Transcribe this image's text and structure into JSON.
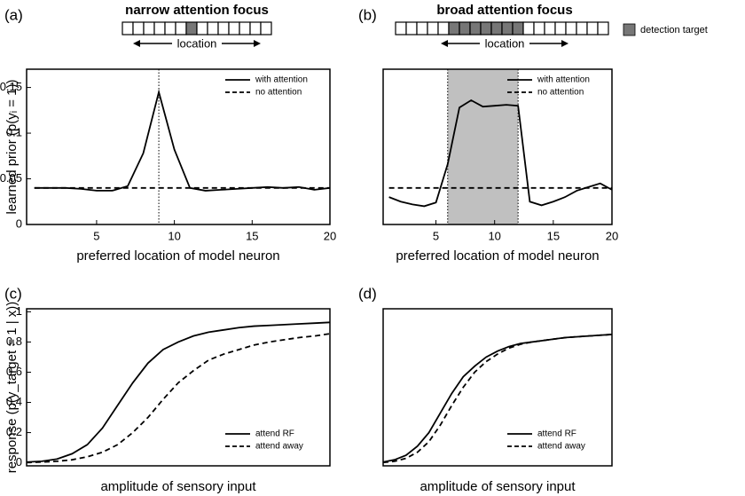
{
  "legend_key": {
    "label": "detection target",
    "color": "#777777"
  },
  "chart_data": [
    {
      "type": "line",
      "panel": "(a)",
      "title": "narrow attention focus",
      "schematic_label": "location",
      "xlabel": "preferred location of model neuron",
      "ylabel": "learned prior (p(yᵢ = 1))",
      "x": [
        1,
        2,
        3,
        4,
        5,
        6,
        7,
        8,
        9,
        10,
        11,
        12,
        13,
        14,
        15,
        16,
        17,
        18,
        19,
        20
      ],
      "series": [
        {
          "name": "with attention",
          "color": "#000000",
          "style": "solid",
          "values": [
            0.04,
            0.04,
            0.04,
            0.039,
            0.037,
            0.037,
            0.042,
            0.078,
            0.145,
            0.082,
            0.04,
            0.037,
            0.038,
            0.039,
            0.04,
            0.041,
            0.04,
            0.041,
            0.038,
            0.04
          ]
        },
        {
          "name": "no attention",
          "color": "#000000",
          "style": "dashed",
          "values": [
            0.04,
            0.04,
            0.04,
            0.04,
            0.04,
            0.04,
            0.04,
            0.04,
            0.04,
            0.04,
            0.04,
            0.04,
            0.04,
            0.04,
            0.04,
            0.04,
            0.04,
            0.04,
            0.04,
            0.04
          ]
        }
      ],
      "vline": 9,
      "xlim": [
        0.5,
        20
      ],
      "xticks": [
        5,
        10,
        15,
        20
      ],
      "ylim": [
        0,
        0.17
      ],
      "yticks": [
        0,
        0.05,
        0.1,
        0.15
      ],
      "legend": "upper right"
    },
    {
      "type": "line",
      "panel": "(b)",
      "title": "broad attention focus",
      "schematic_label": "location",
      "xlabel": "preferred location of model neuron",
      "x": [
        1,
        2,
        3,
        4,
        5,
        6,
        7,
        8,
        9,
        10,
        11,
        12,
        13,
        14,
        15,
        16,
        17,
        18,
        19,
        20
      ],
      "series": [
        {
          "name": "with attention",
          "color": "#000000",
          "style": "solid",
          "values": [
            0.03,
            0.025,
            0.022,
            0.02,
            0.024,
            0.066,
            0.128,
            0.136,
            0.129,
            0.13,
            0.131,
            0.13,
            0.025,
            0.021,
            0.025,
            0.03,
            0.037,
            0.041,
            0.045,
            0.038
          ]
        },
        {
          "name": "no attention",
          "color": "#000000",
          "style": "dashed",
          "values": [
            0.04,
            0.04,
            0.04,
            0.04,
            0.04,
            0.04,
            0.04,
            0.04,
            0.04,
            0.04,
            0.04,
            0.04,
            0.04,
            0.04,
            0.04,
            0.04,
            0.04,
            0.04,
            0.04,
            0.04
          ]
        }
      ],
      "shade": [
        6,
        12
      ],
      "shade_color": "#c0c0c0",
      "xlim": [
        0.5,
        20
      ],
      "xticks": [
        5,
        10,
        15,
        20
      ],
      "ylim": [
        0,
        0.17
      ],
      "legend": "upper right"
    },
    {
      "type": "line",
      "panel": "(c)",
      "xlabel": "amplitude of sensory input",
      "ylabel": "response (p(y_target = 1 | x))",
      "x": [
        0,
        1,
        2,
        3,
        4,
        5,
        6,
        7,
        8,
        9,
        10,
        11,
        12,
        13,
        14,
        15,
        16,
        17,
        18,
        19,
        20
      ],
      "series": [
        {
          "name": "attend RF",
          "color": "#000000",
          "style": "solid",
          "values": [
            0.005,
            0.01,
            0.025,
            0.06,
            0.12,
            0.23,
            0.38,
            0.53,
            0.66,
            0.75,
            0.8,
            0.84,
            0.865,
            0.88,
            0.895,
            0.905,
            0.91,
            0.915,
            0.92,
            0.925,
            0.93
          ]
        },
        {
          "name": "attend away",
          "color": "#000000",
          "style": "dashed",
          "values": [
            0.002,
            0.005,
            0.01,
            0.02,
            0.04,
            0.07,
            0.12,
            0.2,
            0.3,
            0.42,
            0.53,
            0.61,
            0.68,
            0.72,
            0.75,
            0.78,
            0.8,
            0.815,
            0.83,
            0.84,
            0.855
          ]
        }
      ],
      "xlim": [
        0,
        20
      ],
      "ylim": [
        -0.02,
        1.02
      ],
      "yticks": [
        0,
        0.2,
        0.4,
        0.6,
        0.8,
        1
      ],
      "legend": "lower right"
    },
    {
      "type": "line",
      "panel": "(d)",
      "xlabel": "amplitude of sensory input",
      "x": [
        0,
        1,
        2,
        3,
        4,
        5,
        6,
        7,
        8,
        9,
        10,
        11,
        12,
        13,
        14,
        15,
        16,
        17,
        18,
        19,
        20
      ],
      "series": [
        {
          "name": "attend RF",
          "color": "#000000",
          "style": "solid",
          "values": [
            0.005,
            0.02,
            0.05,
            0.11,
            0.2,
            0.33,
            0.46,
            0.57,
            0.64,
            0.7,
            0.74,
            0.77,
            0.79,
            0.8,
            0.81,
            0.82,
            0.83,
            0.835,
            0.84,
            0.845,
            0.85
          ]
        },
        {
          "name": "attend away",
          "color": "#000000",
          "style": "dashed",
          "values": [
            0.002,
            0.01,
            0.03,
            0.07,
            0.14,
            0.25,
            0.38,
            0.5,
            0.6,
            0.67,
            0.72,
            0.76,
            0.785,
            0.8,
            0.81,
            0.82,
            0.83,
            0.835,
            0.84,
            0.845,
            0.85
          ]
        }
      ],
      "xlim": [
        0,
        20
      ],
      "ylim": [
        -0.02,
        1.02
      ],
      "legend": "lower right"
    }
  ]
}
